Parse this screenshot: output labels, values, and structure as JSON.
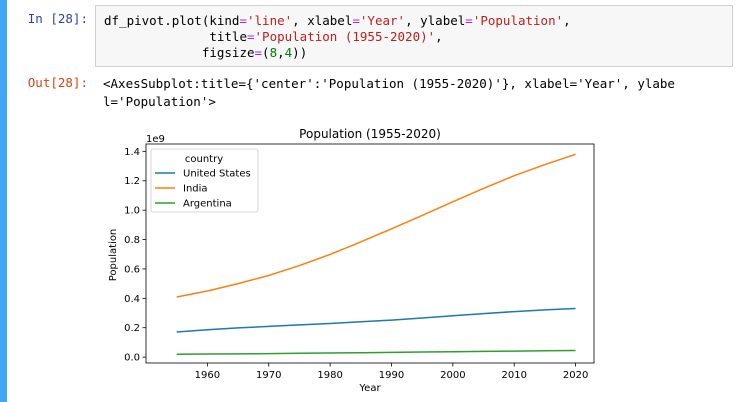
{
  "cell": {
    "in_prompt": "In [28]:",
    "out_prompt": "Out[28]:",
    "code": {
      "l1_a": "df_pivot.plot(kind",
      "l1_b": "=",
      "l1_c": "'line'",
      "l1_d": ", xlabel",
      "l1_e": "=",
      "l1_f": "'Year'",
      "l1_g": ", ylabel",
      "l1_h": "=",
      "l1_i": "'Population'",
      "l1_j": ",",
      "l2_a": "              title",
      "l2_b": "=",
      "l2_c": "'Population (1955-2020)'",
      "l2_d": ",",
      "l3_a": "             figsize",
      "l3_b": "=",
      "l3_c": "(",
      "l3_d": "8",
      "l3_e": ",",
      "l3_f": "4",
      "l3_g": "))"
    },
    "output_line1": "<AxesSubplot:title={'center':'Population (1955-2020)'}, xlabel='Year', ylabe",
    "output_line2": "l='Population'>"
  },
  "chart_data": {
    "type": "line",
    "title": "Population (1955-2020)",
    "xlabel": "Year",
    "ylabel": "Population",
    "y_offset_label": "1e9",
    "xlim": [
      1950,
      2023
    ],
    "ylim": [
      -0.04,
      1.45
    ],
    "x_ticks": [
      1960,
      1970,
      1980,
      1990,
      2000,
      2010,
      2020
    ],
    "y_ticks": [
      0.0,
      0.2,
      0.4,
      0.6,
      0.8,
      1.0,
      1.2,
      1.4
    ],
    "y_tick_labels": [
      "0.0",
      "0.2",
      "0.4",
      "0.6",
      "0.8",
      "1.0",
      "1.2",
      "1.4"
    ],
    "grid": false,
    "legend": {
      "title": "country",
      "placement": "top-left"
    },
    "x": [
      1955,
      1960,
      1965,
      1970,
      1975,
      1980,
      1985,
      1990,
      1995,
      2000,
      2005,
      2010,
      2015,
      2020
    ],
    "series": [
      {
        "name": "United States",
        "color": "#1f77b4",
        "values": [
          0.171,
          0.186,
          0.199,
          0.209,
          0.219,
          0.229,
          0.24,
          0.252,
          0.266,
          0.282,
          0.296,
          0.31,
          0.321,
          0.331
        ]
      },
      {
        "name": "India",
        "color": "#ff7f0e",
        "values": [
          0.409,
          0.45,
          0.5,
          0.555,
          0.623,
          0.699,
          0.784,
          0.873,
          0.964,
          1.057,
          1.148,
          1.234,
          1.31,
          1.38
        ]
      },
      {
        "name": "Argentina",
        "color": "#2ca02c",
        "values": [
          0.019,
          0.021,
          0.022,
          0.024,
          0.026,
          0.028,
          0.03,
          0.032,
          0.035,
          0.037,
          0.039,
          0.041,
          0.043,
          0.045
        ]
      }
    ]
  }
}
